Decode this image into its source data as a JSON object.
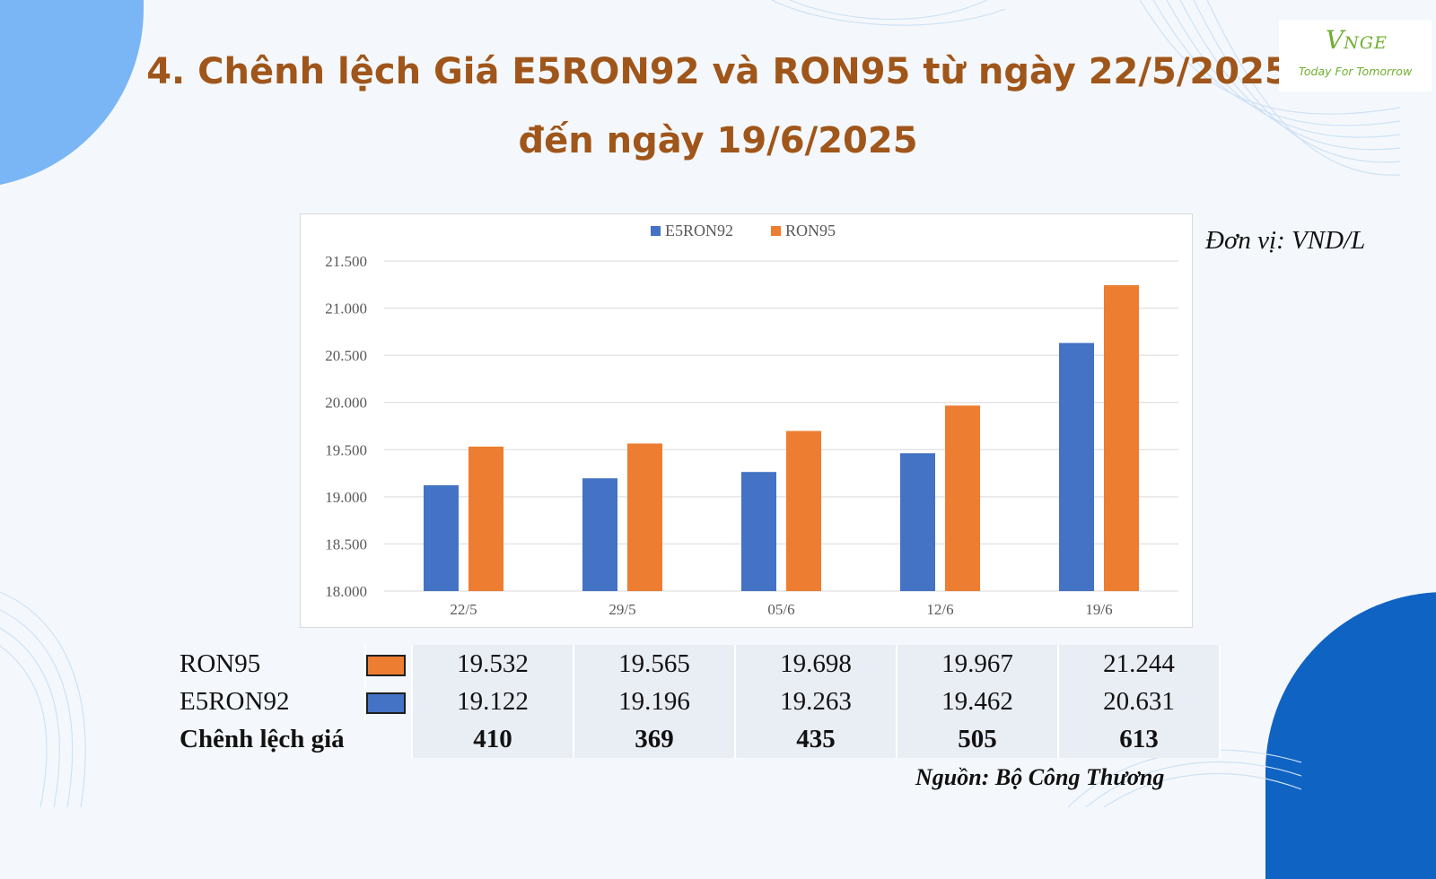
{
  "title_line1": "4. Chênh lệch Giá E5RON92 và RON95 từ ngày 22/5/2025",
  "title_line2": "đến ngày 19/6/2025",
  "logo": {
    "mark": "V",
    "mark_rest": "NGE",
    "tagline": "Today For Tomorrow",
    "color": "#6fae2e"
  },
  "unit_label": "Đơn vị: VND/L",
  "source": "Nguồn: Bộ Công Thương",
  "colors": {
    "E5RON92": "#4472c4",
    "RON95": "#ed7d31",
    "title": "#a0561a"
  },
  "chart_data": {
    "type": "bar",
    "categories": [
      "22/5",
      "29/5",
      "05/6",
      "12/6",
      "19/6"
    ],
    "series": [
      {
        "name": "E5RON92",
        "values": [
          19122,
          19196,
          19263,
          19462,
          20631
        ]
      },
      {
        "name": "RON95",
        "values": [
          19532,
          19565,
          19698,
          19967,
          21244
        ]
      }
    ],
    "ylim": [
      18000,
      21500
    ],
    "yticks": [
      "18.000",
      "18.500",
      "19.000",
      "19.500",
      "20.000",
      "20.500",
      "21.000",
      "21.500"
    ],
    "legend": "top-center",
    "grid": true
  },
  "table": {
    "rows": [
      {
        "label": "RON95",
        "swatch_color": "#ed7d31",
        "values": [
          "19.532",
          "19.565",
          "19.698",
          "19.967",
          "21.244"
        ]
      },
      {
        "label": "E5RON92",
        "swatch_color": "#4472c4",
        "values": [
          "19.122",
          "19.196",
          "19.263",
          "19.462",
          "20.631"
        ]
      },
      {
        "label": "Chênh lệch giá",
        "values": [
          "410",
          "369",
          "435",
          "505",
          "613"
        ]
      }
    ]
  }
}
